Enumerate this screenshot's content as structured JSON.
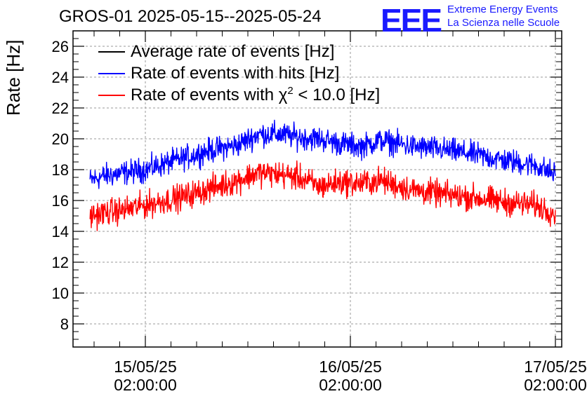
{
  "header": {
    "title": "GROS-01 2025-05-15--2025-05-24",
    "logo_text": "EEE",
    "logo_line1": "Extreme Energy Events",
    "logo_line2": "La Scienza nelle Scuole"
  },
  "colors": {
    "average": "#000000",
    "hits": "#0000ff",
    "chi2": "#ff0000",
    "logo": "#1a1aff",
    "grid": "#9a9a9a"
  },
  "legend": [
    {
      "label": "Average rate of events [Hz]",
      "color": "#000000"
    },
    {
      "label": "Rate of events with hits [Hz]",
      "color": "#0000ff"
    },
    {
      "label_prefix": "Rate of events with ",
      "label_chi": "χ",
      "label_sup": "2",
      "label_suffix": " < 10.0 [Hz]",
      "color": "#ff0000"
    }
  ],
  "chart_data": {
    "type": "line",
    "title": "GROS-01 2025-05-15--2025-05-24",
    "ylabel": "Rate [Hz]",
    "xlabel": "",
    "ylim": [
      6.5,
      27.0
    ],
    "yticks": [
      8,
      10,
      12,
      14,
      16,
      18,
      20,
      22,
      24,
      26
    ],
    "grid": true,
    "legend_position": "top-left",
    "x_ticks": [
      {
        "line1": "15/05/25",
        "line2": "02:00:00",
        "x": 0
      },
      {
        "line1": "16/05/25",
        "line2": "02:00:00",
        "x": 1
      },
      {
        "line1": "17/05/25",
        "line2": "02:00:00",
        "x": 2
      }
    ],
    "xlim": [
      -0.35,
      2.02
    ],
    "series": [
      {
        "name": "Rate of events with hits [Hz]",
        "color": "#0000ff",
        "x": [
          -0.27,
          -0.2,
          -0.1,
          0.0,
          0.1,
          0.2,
          0.3,
          0.45,
          0.55,
          0.65,
          0.75,
          0.85,
          0.95,
          1.05,
          1.15,
          1.3,
          1.45,
          1.6,
          1.75,
          1.9,
          2.0
        ],
        "values": [
          17.3,
          17.6,
          17.8,
          18.0,
          18.4,
          18.8,
          19.2,
          19.6,
          20.3,
          20.3,
          20.1,
          20.0,
          19.7,
          19.5,
          19.9,
          19.5,
          19.3,
          19.0,
          18.6,
          18.3,
          17.7
        ],
        "noise": 0.55
      },
      {
        "name": "Rate of events with χ2 < 10.0 [Hz]",
        "color": "#ff0000",
        "x": [
          -0.27,
          -0.2,
          -0.1,
          0.0,
          0.1,
          0.2,
          0.3,
          0.45,
          0.55,
          0.65,
          0.75,
          0.85,
          0.95,
          1.05,
          1.15,
          1.3,
          1.45,
          1.6,
          1.75,
          1.9,
          2.0
        ],
        "values": [
          15.0,
          15.2,
          15.4,
          15.7,
          16.0,
          16.3,
          16.7,
          17.3,
          17.8,
          17.7,
          17.5,
          16.9,
          17.2,
          17.1,
          17.3,
          16.7,
          16.4,
          16.2,
          15.9,
          15.7,
          15.2
        ],
        "noise": 0.6
      }
    ]
  }
}
